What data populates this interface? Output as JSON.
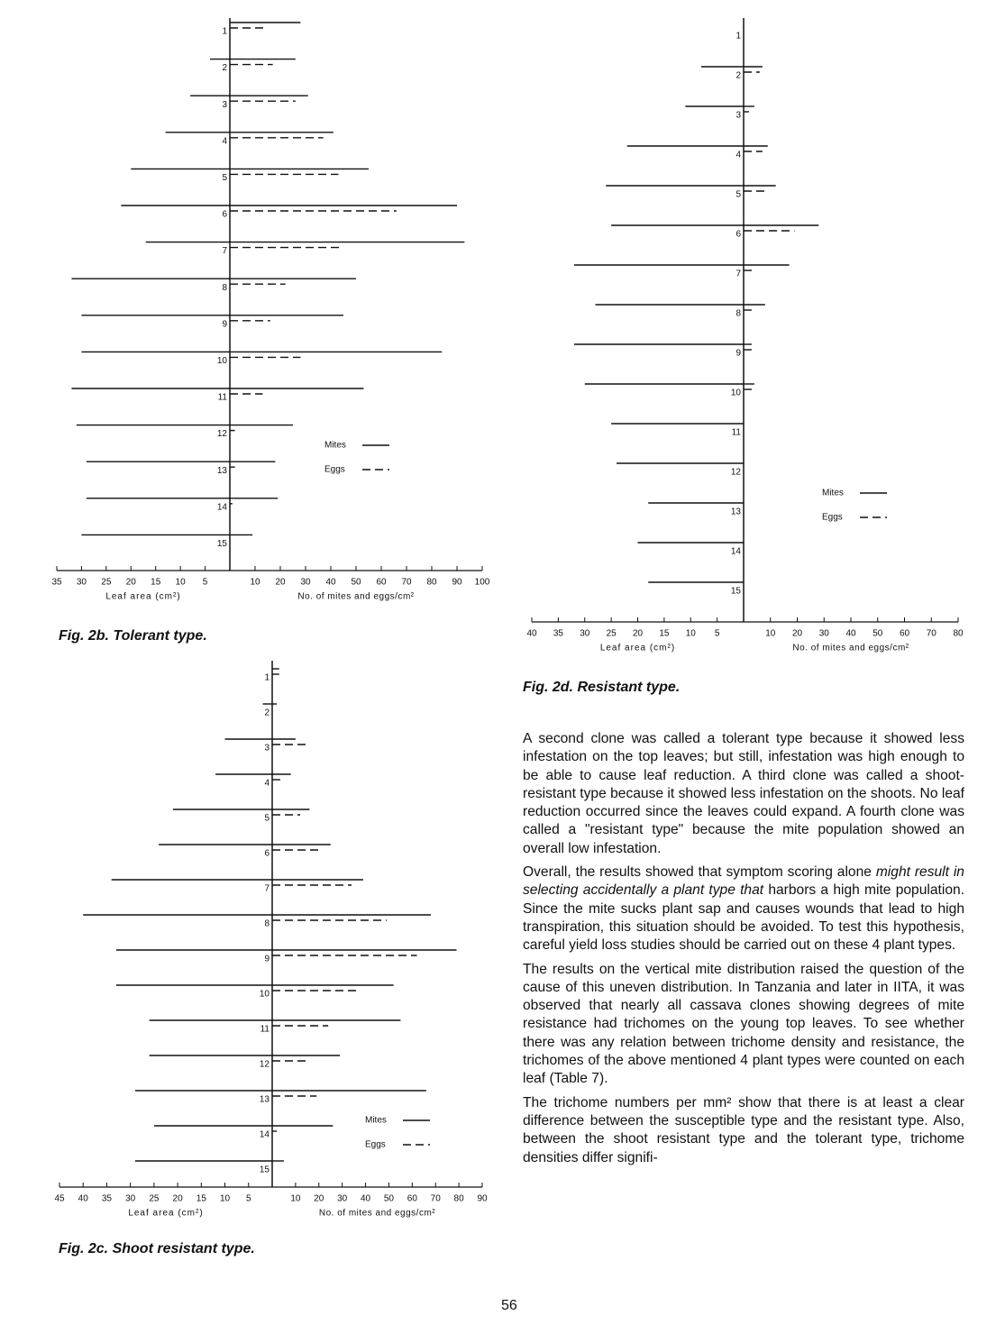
{
  "chart_data": [
    {
      "type": "butterfly",
      "caption": "Fig. 2b. Tolerant type.",
      "color": "#111",
      "categories": [
        "1",
        "2",
        "3",
        "4",
        "5",
        "6",
        "7",
        "8",
        "9",
        "10",
        "11",
        "12",
        "13",
        "14",
        "15"
      ],
      "leaf_area": [
        0,
        4,
        8,
        13,
        20,
        22,
        17,
        32,
        30,
        30,
        32,
        31,
        29,
        29,
        30
      ],
      "series": [
        {
          "name": "Mites",
          "style": "solid",
          "values": [
            28,
            26,
            31,
            41,
            55,
            90,
            93,
            50,
            45,
            84,
            53,
            25,
            18,
            19,
            9
          ]
        },
        {
          "name": "Eggs",
          "style": "dashed",
          "values": [
            15,
            17,
            26,
            37,
            43,
            66,
            45,
            22,
            16,
            28,
            13,
            2,
            2,
            1,
            0
          ]
        }
      ],
      "xlabel_left": "Leaf area (cm²)",
      "xlabel_right": "No. of mites and eggs/cm²",
      "left_xlim": [
        0,
        35
      ],
      "left_xticks": [
        35,
        30,
        25,
        20,
        15,
        10,
        5
      ],
      "right_xlim": [
        0,
        100
      ],
      "right_xticks": [
        10,
        20,
        30,
        40,
        50,
        60,
        70,
        80,
        90,
        100
      ]
    },
    {
      "type": "butterfly",
      "caption": "Fig. 2c. Shoot resistant type.",
      "color": "#111",
      "categories": [
        "1",
        "2",
        "3",
        "4",
        "5",
        "6",
        "7",
        "8",
        "9",
        "10",
        "11",
        "12",
        "13",
        "14",
        "15"
      ],
      "leaf_area": [
        0,
        2,
        10,
        12,
        21,
        24,
        34,
        40,
        33,
        33,
        26,
        26,
        29,
        25,
        29
      ],
      "series": [
        {
          "name": "Mites",
          "style": "solid",
          "values": [
            3,
            2,
            10,
            8,
            16,
            25,
            39,
            68,
            79,
            52,
            55,
            29,
            66,
            26,
            5
          ]
        },
        {
          "name": "Eggs",
          "style": "dashed",
          "values": [
            3,
            0,
            15,
            5,
            12,
            20,
            34,
            49,
            62,
            36,
            24,
            15,
            19,
            2,
            0
          ]
        }
      ],
      "xlabel_left": "Leaf area (cm²)",
      "xlabel_right": "No. of mites and eggs/cm²",
      "left_xlim": [
        0,
        45
      ],
      "left_xticks": [
        45,
        40,
        35,
        30,
        25,
        20,
        15,
        10,
        5
      ],
      "right_xlim": [
        0,
        90
      ],
      "right_xticks": [
        10,
        20,
        30,
        40,
        50,
        60,
        70,
        80,
        90
      ]
    },
    {
      "type": "butterfly",
      "caption": "Fig. 2d. Resistant type.",
      "color": "#111",
      "categories": [
        "1",
        "2",
        "3",
        "4",
        "5",
        "6",
        "7",
        "8",
        "9",
        "10",
        "11",
        "12",
        "13",
        "14",
        "15"
      ],
      "leaf_area": [
        0,
        8,
        11,
        22,
        26,
        25,
        32,
        28,
        32,
        30,
        25,
        24,
        18,
        20,
        18
      ],
      "series": [
        {
          "name": "Mites",
          "style": "solid",
          "values": [
            0,
            7,
            4,
            9,
            12,
            28,
            17,
            8,
            3,
            4,
            0,
            0,
            0,
            0,
            0
          ]
        },
        {
          "name": "Eggs",
          "style": "dashed",
          "values": [
            0,
            6,
            2,
            7,
            8,
            19,
            4,
            3,
            3,
            4,
            0,
            0,
            0,
            0,
            0
          ]
        }
      ],
      "xlabel_left": "Leaf area (cm²)",
      "xlabel_right": "No. of mites and eggs/cm²",
      "left_xlim": [
        0,
        40
      ],
      "left_xticks": [
        40,
        35,
        30,
        25,
        20,
        15,
        10,
        5
      ],
      "right_xlim": [
        0,
        80
      ],
      "right_xticks": [
        10,
        20,
        30,
        40,
        50,
        60,
        70,
        80
      ]
    }
  ],
  "paragraphs": [
    [
      {
        "text": "A second clone was called a tolerant type because it showed less infestation on the top leaves; but still, infestation was high enough to be able to cause leaf reduction. A third clone was called a shoot-resistant type because it showed less infestation on the shoots. No leaf reduction occurred since the leaves could expand. A fourth clone was called a \"resistant type\" because the mite population showed an overall low infestation."
      }
    ],
    [
      {
        "text": "Overall, the results showed that symptom scoring alone "
      },
      {
        "text": "might result in selecting accidentally a plant type that",
        "italic": true
      },
      {
        "text": " harbors a high mite population. Since the mite sucks plant sap and causes wounds that lead to high transpiration, this situation should be avoided. To test this hypothesis, careful yield loss studies should be carried out on these 4 plant types."
      }
    ],
    [
      {
        "text": "The results on the vertical mite distribution raised the question of the cause of this uneven distribution. In Tanzania and later in IITA, it was observed that nearly all cassava clones showing degrees of mite resistance had trichomes on the young top leaves. To see whether there was any relation between trichome density and resistance, the trichomes of the above mentioned 4 plant types were counted on each leaf (Table 7)."
      }
    ],
    [
      {
        "text": "The trichome numbers per mm² show that there is at least a clear difference between the susceptible type and the resistant type. Also, between the shoot resistant type and the tolerant type, trichome densities differ signifi-"
      }
    ]
  ],
  "page_number": "56"
}
